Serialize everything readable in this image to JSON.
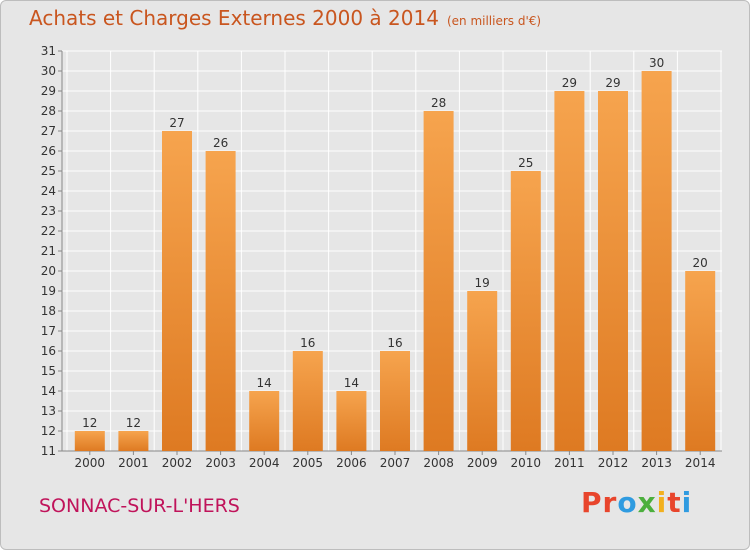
{
  "header": {
    "title": "Achats et Charges Externes 2000 à 2014",
    "unit": "(en milliers d'€)"
  },
  "footer": {
    "town": "SONNAC-SUR-L'HERS",
    "brand": "Proxiti",
    "brand_colors": [
      "#e8452c",
      "#e8452c",
      "#2f9be0",
      "#4caf3d",
      "#f2b01e",
      "#e8452c",
      "#2f9be0"
    ]
  },
  "colors": {
    "bar_light": "#f6a44e",
    "bar_dark": "#de7a22",
    "title": "#c9561f",
    "town": "#c0135a",
    "grid": "#ffffff",
    "background": "#e6e6e6"
  },
  "chart_data": {
    "type": "bar",
    "title": "Achats et Charges Externes 2000 à 2014",
    "subtitle": "(en milliers d'€)",
    "categories": [
      "2000",
      "2001",
      "2002",
      "2003",
      "2004",
      "2005",
      "2006",
      "2007",
      "2008",
      "2009",
      "2010",
      "2011",
      "2012",
      "2013",
      "2014"
    ],
    "values": [
      12,
      12,
      27,
      26,
      14,
      16,
      14,
      16,
      28,
      19,
      25,
      29,
      29,
      30,
      20
    ],
    "ylim": [
      11,
      31
    ],
    "yticks": [
      11,
      12,
      13,
      14,
      15,
      16,
      17,
      18,
      19,
      20,
      21,
      22,
      23,
      24,
      25,
      26,
      27,
      28,
      29,
      30,
      31
    ],
    "grid": true,
    "legend": false,
    "data_labels": true
  }
}
